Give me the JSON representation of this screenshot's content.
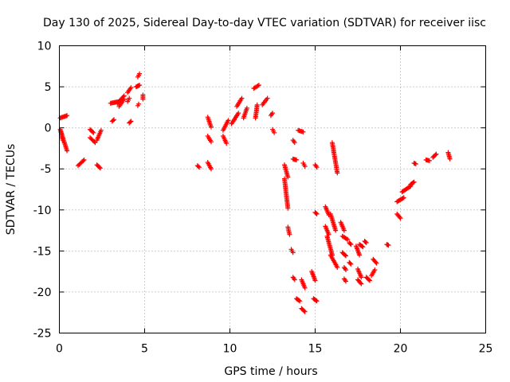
{
  "chart_data": {
    "type": "scatter",
    "title": "Day 130 of 2025, Sidereal Day-to-day VTEC variation (SDTVAR) for receiver iisc",
    "xlabel": "GPS time / hours",
    "ylabel": "SDTVAR / TECUs",
    "xlim": [
      0,
      25
    ],
    "ylim": [
      -25,
      10
    ],
    "x_ticks": [
      0,
      5,
      10,
      15,
      20,
      25
    ],
    "y_ticks": [
      -25,
      -20,
      -15,
      -10,
      -5,
      0,
      5,
      10
    ],
    "x_tick_labels": [
      "0",
      "5",
      "10",
      "15",
      "20",
      "25"
    ],
    "y_tick_labels": [
      "-25",
      "-20",
      "-15",
      "-10",
      "-5",
      "0",
      "5",
      "10"
    ],
    "grid": true,
    "marker": "plus",
    "color": "#ff0000",
    "segments": [
      [
        0.05,
        1.2,
        0.45,
        1.5
      ],
      [
        0.05,
        -0.2,
        0.45,
        -2.8
      ],
      [
        0.1,
        -0.5,
        0.2,
        -1.5
      ],
      [
        1.1,
        -4.6,
        1.45,
        -3.9
      ],
      [
        1.8,
        -0.2,
        2.0,
        -0.6
      ],
      [
        1.8,
        -1.2,
        2.1,
        -1.8
      ],
      [
        2.2,
        -1.5,
        2.45,
        -0.3
      ],
      [
        2.2,
        -4.5,
        2.4,
        -4.9
      ],
      [
        3.1,
        0.8,
        3.2,
        1.0
      ],
      [
        3.0,
        3.0,
        3.5,
        3.2
      ],
      [
        3.4,
        3.0,
        3.8,
        3.9
      ],
      [
        3.5,
        2.6,
        3.8,
        3.5
      ],
      [
        4.0,
        4.3,
        4.2,
        4.9
      ],
      [
        4.0,
        3.2,
        4.1,
        3.6
      ],
      [
        4.1,
        0.6,
        4.2,
        0.8
      ],
      [
        4.5,
        5.0,
        4.7,
        5.2
      ],
      [
        4.6,
        6.2,
        4.7,
        6.6
      ],
      [
        4.6,
        2.7,
        4.65,
        2.9
      ],
      [
        4.9,
        3.5,
        4.9,
        4.0
      ],
      [
        8.1,
        -4.6,
        8.2,
        -4.8
      ],
      [
        8.7,
        1.3,
        8.9,
        0.1
      ],
      [
        8.7,
        -1.0,
        8.9,
        -1.7
      ],
      [
        8.7,
        -4.2,
        8.9,
        -5.0
      ],
      [
        9.6,
        -0.3,
        9.9,
        0.9
      ],
      [
        9.6,
        -1.0,
        9.8,
        -1.9
      ],
      [
        10.1,
        0.5,
        10.5,
        1.8
      ],
      [
        10.4,
        2.6,
        10.7,
        3.6
      ],
      [
        10.8,
        1.2,
        11.0,
        2.4
      ],
      [
        11.4,
        4.8,
        11.7,
        5.2
      ],
      [
        11.5,
        1.2,
        11.6,
        2.8
      ],
      [
        11.9,
        2.8,
        12.2,
        3.6
      ],
      [
        12.4,
        1.5,
        12.5,
        1.8
      ],
      [
        12.5,
        -0.2,
        12.6,
        -0.6
      ],
      [
        13.2,
        -4.5,
        13.4,
        -6.0
      ],
      [
        13.2,
        -6.2,
        13.4,
        -9.8
      ],
      [
        13.4,
        -12.1,
        13.5,
        -13.0
      ],
      [
        13.6,
        -14.8,
        13.7,
        -15.2
      ],
      [
        13.7,
        -1.5,
        13.8,
        -1.8
      ],
      [
        13.7,
        -3.8,
        13.9,
        -3.9
      ],
      [
        13.7,
        -18.2,
        13.8,
        -18.5
      ],
      [
        13.9,
        -20.8,
        14.1,
        -21.1
      ],
      [
        14.0,
        -0.3,
        14.3,
        -0.5
      ],
      [
        14.2,
        -22.0,
        14.4,
        -22.4
      ],
      [
        14.2,
        -18.5,
        14.4,
        -19.5
      ],
      [
        14.3,
        -4.3,
        14.4,
        -4.7
      ],
      [
        14.8,
        -17.5,
        15.0,
        -18.6
      ],
      [
        15.0,
        -4.5,
        15.1,
        -4.8
      ],
      [
        15.0,
        -10.3,
        15.1,
        -10.5
      ],
      [
        14.9,
        -20.8,
        15.1,
        -21.1
      ],
      [
        15.6,
        -9.6,
        15.8,
        -10.6
      ],
      [
        15.6,
        -12.0,
        15.8,
        -13.0
      ],
      [
        15.7,
        -13.2,
        16.0,
        -15.5
      ],
      [
        15.9,
        -15.5,
        16.3,
        -17.0
      ],
      [
        15.9,
        -10.5,
        16.2,
        -12.5
      ],
      [
        16.0,
        -1.8,
        16.3,
        -5.5
      ],
      [
        16.5,
        -11.5,
        16.7,
        -12.5
      ],
      [
        16.6,
        -13.2,
        16.9,
        -13.6
      ],
      [
        16.6,
        -15.2,
        16.8,
        -15.6
      ],
      [
        16.7,
        -17.0,
        16.8,
        -17.3
      ],
      [
        16.7,
        -18.4,
        16.8,
        -18.7
      ],
      [
        17.0,
        -14.0,
        17.1,
        -14.2
      ],
      [
        17.0,
        -16.4,
        17.1,
        -16.6
      ],
      [
        17.5,
        -17.2,
        17.7,
        -18.2
      ],
      [
        17.5,
        -18.5,
        17.7,
        -19.0
      ],
      [
        17.4,
        -14.4,
        17.6,
        -15.5
      ],
      [
        17.6,
        -14.2,
        17.8,
        -14.5
      ],
      [
        17.9,
        -13.8,
        18.0,
        -14.0
      ],
      [
        18.0,
        -18.2,
        18.2,
        -18.6
      ],
      [
        18.3,
        -18.0,
        18.5,
        -17.3
      ],
      [
        18.4,
        -16.0,
        18.6,
        -16.5
      ],
      [
        19.2,
        -14.2,
        19.3,
        -14.3
      ],
      [
        19.8,
        -9.0,
        20.2,
        -8.5
      ],
      [
        19.8,
        -10.5,
        20.0,
        -11.0
      ],
      [
        20.1,
        -7.8,
        20.6,
        -7.1
      ],
      [
        20.6,
        -6.9,
        20.8,
        -6.6
      ],
      [
        20.8,
        -4.3,
        20.9,
        -4.4
      ],
      [
        21.5,
        -3.9,
        21.7,
        -4.0
      ],
      [
        21.9,
        -3.6,
        22.1,
        -3.2
      ],
      [
        22.8,
        -3.0,
        22.9,
        -3.8
      ]
    ]
  }
}
